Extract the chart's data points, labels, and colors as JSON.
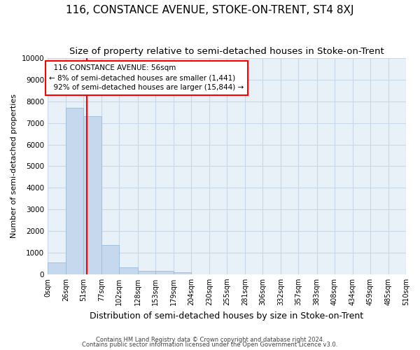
{
  "title": "116, CONSTANCE AVENUE, STOKE-ON-TRENT, ST4 8XJ",
  "subtitle": "Size of property relative to semi-detached houses in Stoke-on-Trent",
  "xlabel": "Distribution of semi-detached houses by size in Stoke-on-Trent",
  "ylabel": "Number of semi-detached properties",
  "footnote1": "Contains HM Land Registry data © Crown copyright and database right 2024.",
  "footnote2": "Contains public sector information licensed under the Open Government Licence v3.0.",
  "property_size": 56,
  "property_label": "116 CONSTANCE AVENUE: 56sqm",
  "pct_smaller": 8,
  "pct_larger": 92,
  "count_smaller": 1441,
  "count_larger": 15844,
  "bar_color": "#c5d8ee",
  "bar_edge_color": "#9bbcd8",
  "vline_color": "red",
  "bin_edges": [
    0,
    26,
    51,
    77,
    102,
    128,
    153,
    179,
    204,
    230,
    255,
    281,
    306,
    332,
    357,
    383,
    408,
    434,
    459,
    485,
    510
  ],
  "bar_heights": [
    550,
    7700,
    7300,
    1350,
    330,
    165,
    140,
    80,
    0,
    0,
    0,
    0,
    0,
    0,
    0,
    0,
    0,
    0,
    0,
    0
  ],
  "ylim": [
    0,
    10000
  ],
  "yticks": [
    0,
    1000,
    2000,
    3000,
    4000,
    5000,
    6000,
    7000,
    8000,
    9000,
    10000
  ],
  "grid_color": "#c8d8e8",
  "background_color": "#e8f0f8",
  "title_fontsize": 11,
  "subtitle_fontsize": 9.5,
  "xlabel_fontsize": 9,
  "ylabel_fontsize": 8
}
